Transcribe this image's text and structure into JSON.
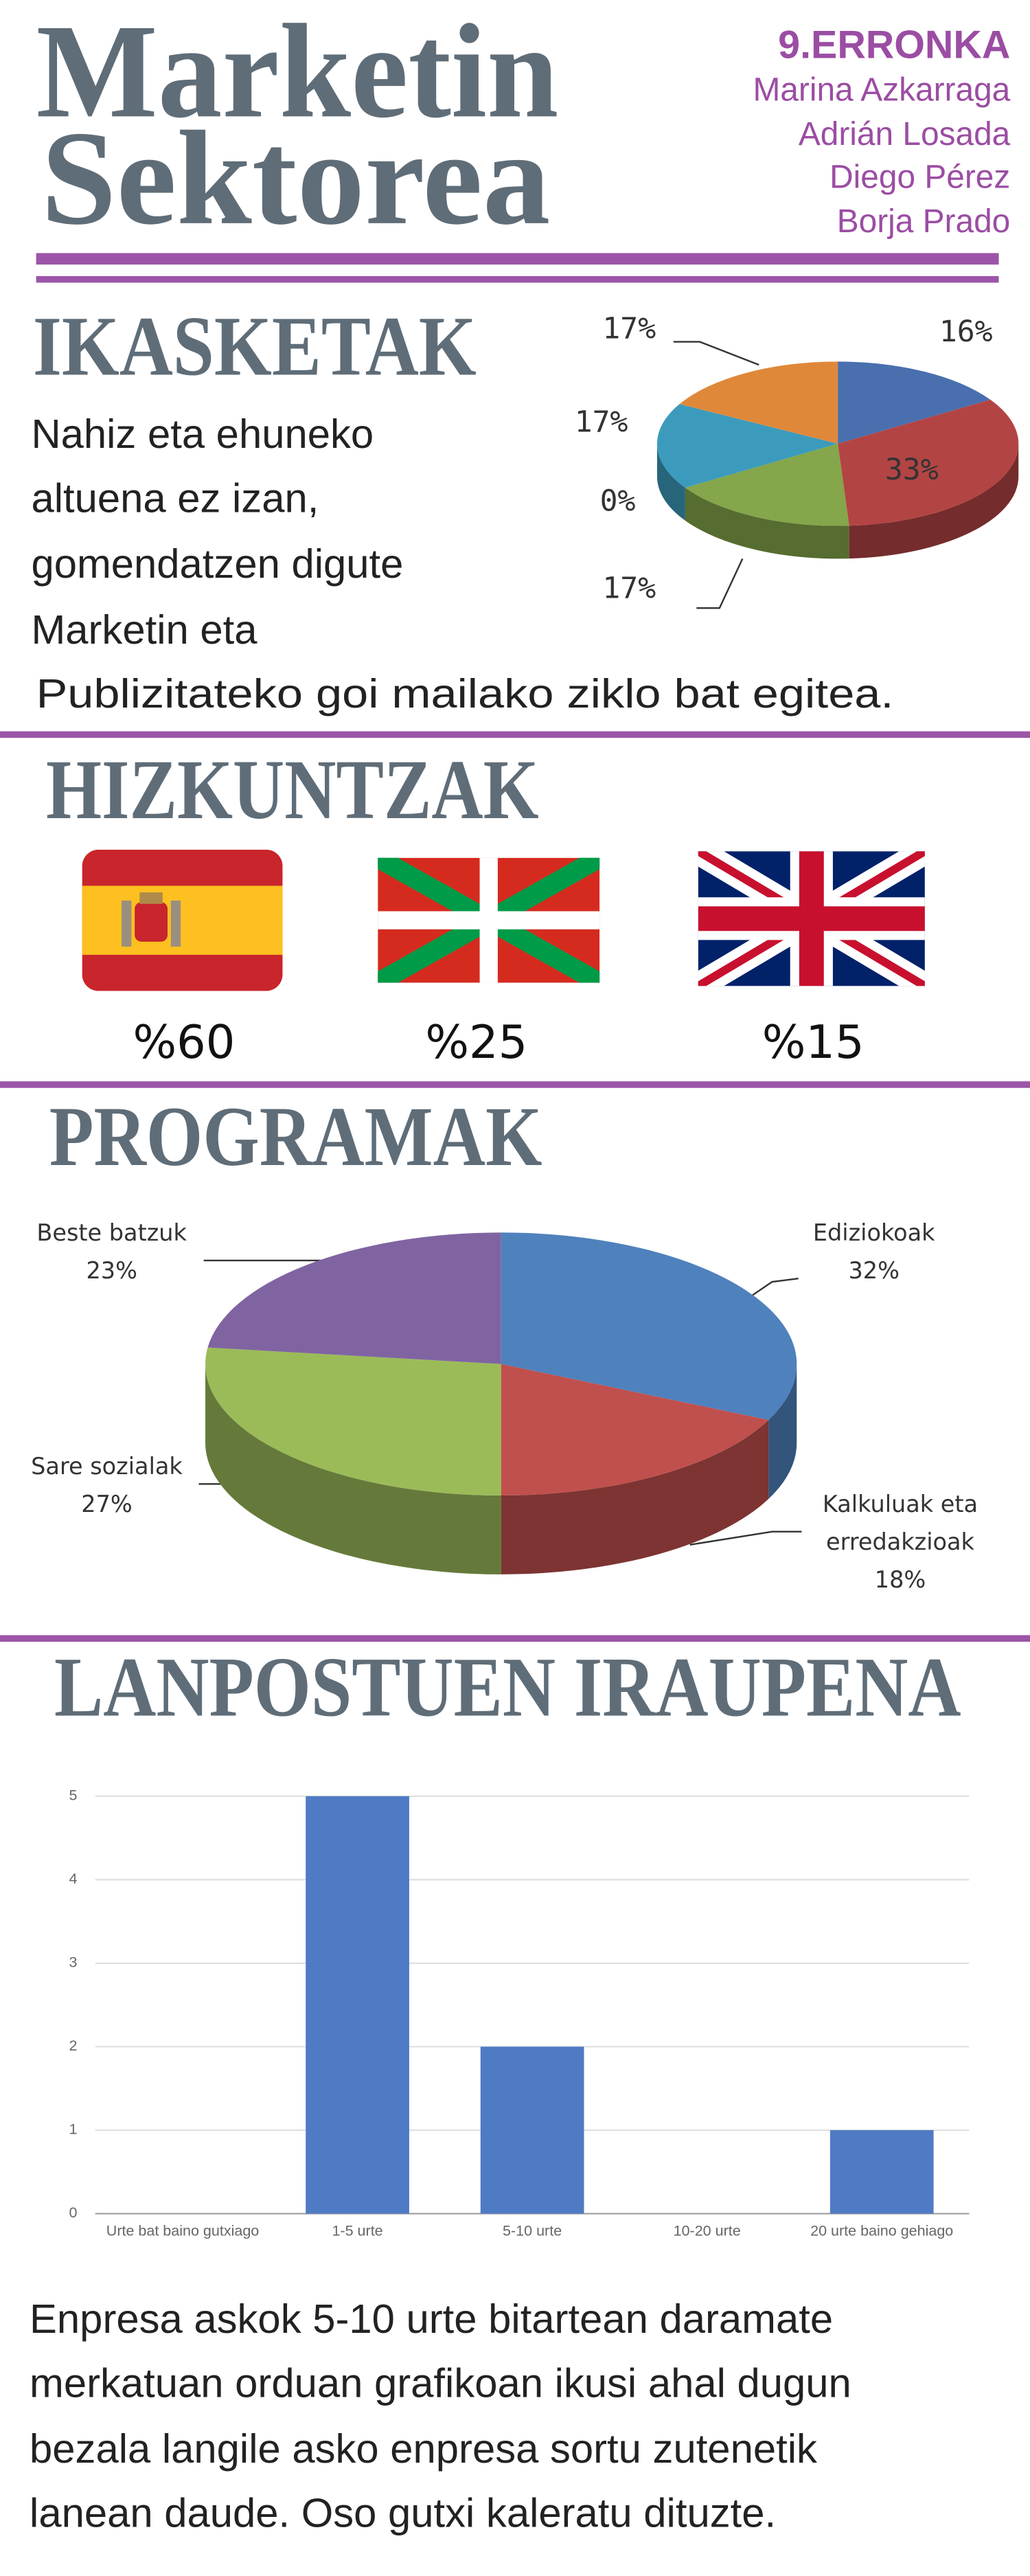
{
  "header": {
    "title": [
      "Marketin",
      "Sektorea"
    ],
    "group": "9.ERRONKA",
    "authors": [
      "Marina Azkarraga",
      "Adrián Losada",
      "Diego Pérez",
      "Borja Prado"
    ]
  },
  "sections": {
    "ikasketak": {
      "heading": "IKASKETAK",
      "text": [
        "Nahiz eta ehuneko",
        "altuena ez izan,",
        "gomendatzen digute",
        "Marketin eta",
        "Publizitateko goi mailako ziklo bat egitea."
      ]
    },
    "hizkuntzak": {
      "heading": "HIZKUNTZAK",
      "languages": [
        "%60",
        "%25",
        "%15"
      ]
    },
    "programak": {
      "heading": "PROGRAMAK"
    },
    "lanpostuen": {
      "heading": "LANPOSTUEN IRAUPENA",
      "text": [
        "Enpresa askok 5-10 urte bitartean daramate",
        "merkatuan orduan grafikoan ikusi ahal dugun",
        "bezala langile asko enpresa sortu zutenetik",
        "lanean daude. Oso gutxi kaleratu dituzte."
      ]
    }
  },
  "chart_data": [
    {
      "type": "pie",
      "categories": [
        null,
        null,
        null,
        null,
        null,
        null
      ],
      "values": [
        16,
        33,
        17,
        0,
        17,
        17
      ],
      "value_labels": [
        "16%",
        "33%",
        "17%",
        "0%",
        "17%",
        "17%"
      ],
      "colors": [
        "#4a6fae",
        "#b34444",
        "#85a64a",
        "#888888",
        "#3c9bbd",
        "#e0883a"
      ]
    },
    {
      "type": "pie",
      "categories": [
        "Ediziokoak",
        "Kalkuluak eta erredakzioak",
        "Sare sozialak",
        "Beste batzuk"
      ],
      "values": [
        32,
        18,
        27,
        23
      ],
      "value_labels": [
        "32%",
        "18%",
        "27%",
        "23%"
      ],
      "colors": [
        "#4f81bd",
        "#c0504d",
        "#9bbb59",
        "#8064a2"
      ]
    },
    {
      "type": "bar",
      "categories": [
        "Urte bat baino gutxiago",
        "1-5 urte",
        "5-10 urte",
        "10-20 urte",
        "20 urte baino gehiago"
      ],
      "values": [
        0,
        5,
        2,
        0,
        1
      ],
      "color": "#4f7bc4",
      "ylim": [
        0,
        5
      ],
      "yticks": [
        0,
        1,
        2,
        3,
        4,
        5
      ],
      "grid": true
    }
  ]
}
